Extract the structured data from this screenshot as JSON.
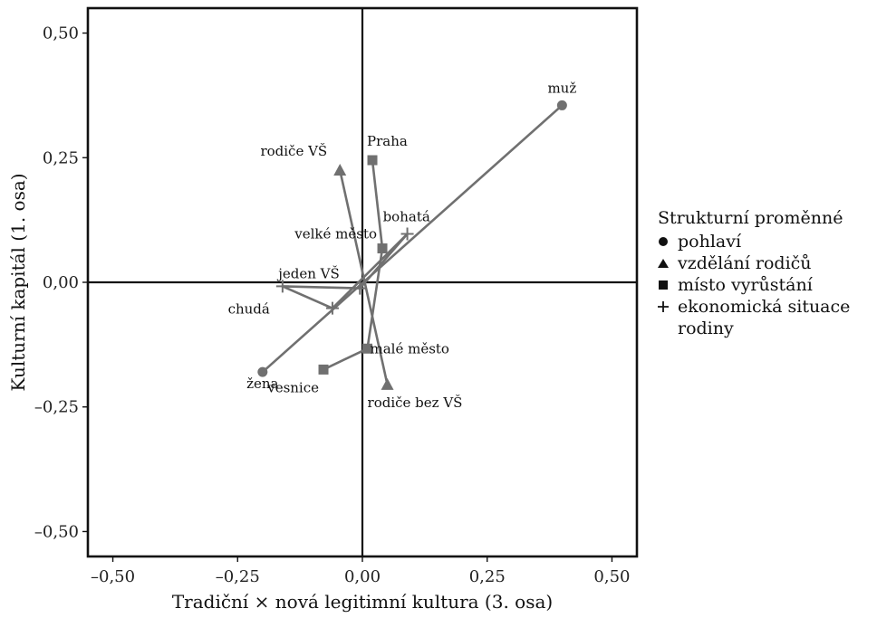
{
  "chart_data": {
    "type": "scatter",
    "xlabel": "Tradiční × nová legitimní kultura (3. osa)",
    "ylabel": "Kulturní kapitál (1. osa)",
    "xlim": [
      -0.55,
      0.55
    ],
    "ylim": [
      -0.55,
      0.55
    ],
    "x_ticks": [
      -0.5,
      -0.25,
      0.0,
      0.25,
      0.5
    ],
    "y_ticks": [
      -0.5,
      -0.25,
      0.0,
      0.25,
      0.5
    ],
    "x_tick_labels": [
      "–0,50",
      "–0,25",
      "0,00",
      "0,25",
      "0,50"
    ],
    "y_tick_labels": [
      "–0,50",
      "–0,25",
      "0,00",
      "0,25",
      "0,50"
    ],
    "grid": false,
    "reference_lines": {
      "x": 0,
      "y": 0
    },
    "legend_position": "right",
    "legend": {
      "title": "Strukturní proměnné",
      "items": [
        {
          "symbol": "circle",
          "label": "pohlaví"
        },
        {
          "symbol": "triangle",
          "label": "vzdělání rodičů"
        },
        {
          "symbol": "square",
          "label": "místo vyrůstání"
        },
        {
          "symbol": "plus",
          "label": "ekonomická situace rodiny"
        }
      ]
    },
    "series": [
      {
        "symbol": "circle",
        "points": [
          {
            "label": "žena",
            "x": -0.2,
            "y": -0.18
          },
          {
            "label": "muž",
            "x": 0.4,
            "y": 0.355
          }
        ]
      },
      {
        "symbol": "triangle",
        "points": [
          {
            "label": "rodiče VŠ",
            "x": -0.045,
            "y": 0.225
          },
          {
            "label": "rodiče bez VŠ",
            "x": 0.05,
            "y": -0.205
          }
        ]
      },
      {
        "symbol": "square",
        "points": [
          {
            "label": "Praha",
            "x": 0.02,
            "y": 0.245
          },
          {
            "label": "velké město",
            "x": 0.04,
            "y": 0.068
          },
          {
            "label": "malé město",
            "x": 0.01,
            "y": -0.133
          },
          {
            "label": "vesnice",
            "x": -0.078,
            "y": -0.175
          }
        ]
      },
      {
        "symbol": "plus",
        "points": [
          {
            "label": "bohatá",
            "x": 0.09,
            "y": 0.097
          },
          {
            "label": "jeden VŠ",
            "x": -0.005,
            "y": -0.012
          },
          {
            "label": "chudá",
            "x": -0.16,
            "y": -0.008
          },
          {
            "label": "",
            "x": -0.06,
            "y": -0.052
          }
        ]
      }
    ],
    "connections": [
      {
        "from": "žena",
        "to": "muž"
      },
      {
        "from": "rodiče VŠ",
        "to": "rodiče bez VŠ"
      },
      {
        "from": "Praha",
        "to": "velké město"
      },
      {
        "from": "velké město",
        "to": "malé město"
      },
      {
        "from": "malé město",
        "to": "vesnice"
      },
      {
        "from": "bohatá",
        "to": "jeden VŠ"
      },
      {
        "from": "jeden VŠ",
        "to": "chudá"
      },
      {
        "from": "chudá",
        "to": "p-3-3"
      },
      {
        "from": "p-3-3",
        "to": "bohatá"
      }
    ],
    "colors": {
      "series": "#707070",
      "axes": "#111111"
    }
  }
}
